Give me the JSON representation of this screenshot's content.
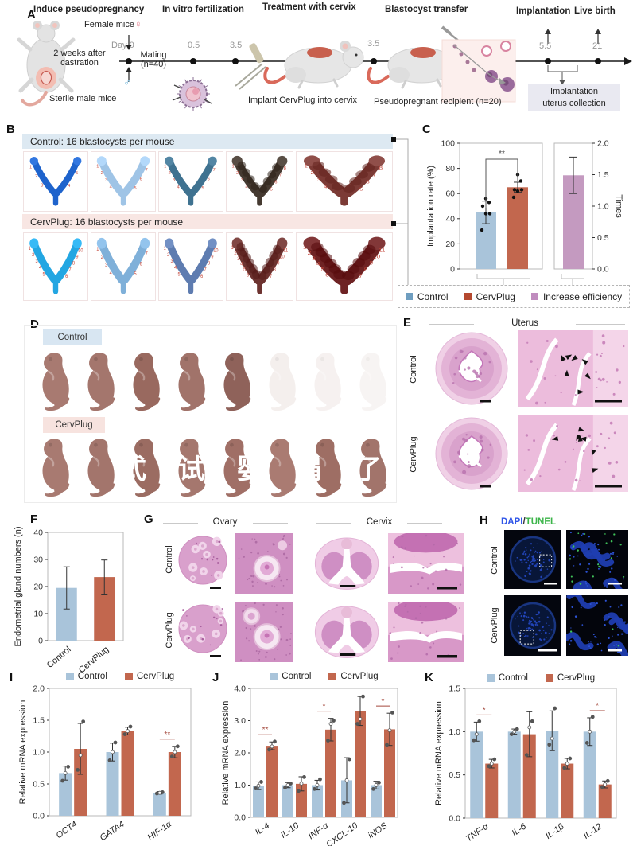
{
  "panels": {
    "a": "A",
    "b": "B",
    "c": "C",
    "d": "D",
    "e": "E",
    "f": "F",
    "g": "G",
    "h": "H",
    "i": "I",
    "j": "J",
    "k": "K"
  },
  "panelA": {
    "steps": [
      "Induce pseudopregnancy",
      "In vitro fertilization",
      "Treatment with cervix",
      "Blastocyst transfer",
      "Implantation",
      "Live birth"
    ],
    "female_mice": "Female mice",
    "female_symbol": "♀",
    "male_symbol": "♂",
    "day0": "Day 0",
    "mating": "Mating",
    "mating_n": "(n=40)",
    "castration_1": "2 weeks after",
    "castration_2": "castration",
    "sterile": "Sterile male mice",
    "t05": "0.5",
    "t35a": "3.5",
    "t35b": "3.5",
    "t55": "5.5",
    "t21": "21",
    "implant_note": "Implant CervPlug into cervix",
    "recipient_note": "Pseudopregnant recipient (n=20)",
    "collection_1": "Implantation",
    "collection_2": "uterus collection"
  },
  "panelB": {
    "control_header": "Control: 16 blastocysts per mouse",
    "cervplug_header": "CervPlug: 16 blastocysts per mouse",
    "control_tiles": [
      {
        "color": "#1e63cc",
        "count": 5,
        "bumpy": false,
        "strokeW": 10
      },
      {
        "color": "#9fc4e6",
        "count": 7,
        "bumpy": false,
        "strokeW": 12
      },
      {
        "color": "#3f7290",
        "count": 7,
        "bumpy": false,
        "strokeW": 11
      },
      {
        "color": "#453a31",
        "count": 8,
        "bumpy": true,
        "strokeW": 13
      },
      {
        "color": "#7c3b36",
        "count": 8,
        "bumpy": true,
        "strokeW": 14
      }
    ],
    "cervplug_tiles": [
      {
        "color": "#23a6e2",
        "count": 10,
        "bumpy": false,
        "strokeW": 11
      },
      {
        "color": "#7fb0d9",
        "count": 7,
        "bumpy": false,
        "strokeW": 12
      },
      {
        "color": "#5e7cb0",
        "count": 10,
        "bumpy": false,
        "strokeW": 11
      },
      {
        "color": "#6d3330",
        "count": 11,
        "bumpy": true,
        "strokeW": 13
      },
      {
        "color": "#6e2324",
        "count": 11,
        "bumpy": true,
        "strokeW": 15
      }
    ]
  },
  "panelD": {
    "control": "Control",
    "cervplug": "CervPlug",
    "control_pups": [
      {
        "color": "#a87a71",
        "opacity": 1
      },
      {
        "color": "#a4766d",
        "opacity": 1
      },
      {
        "color": "#99695f",
        "opacity": 1
      },
      {
        "color": "#a1736a",
        "opacity": 1
      },
      {
        "color": "#8f625a",
        "opacity": 1
      },
      {
        "color": "#e8dcd8",
        "opacity": 0.45
      },
      {
        "color": "#e8dcd8",
        "opacity": 0.38
      },
      {
        "color": "#e8dcd8",
        "opacity": 0.3
      }
    ],
    "cervplug_pups": [
      {
        "color": "#a87a71",
        "opacity": 1
      },
      {
        "color": "#a3756c",
        "opacity": 1
      },
      {
        "color": "#9b6c62",
        "opacity": 1
      },
      {
        "color": "#a5776e",
        "opacity": 1
      },
      {
        "color": "#a06f66",
        "opacity": 1
      },
      {
        "color": "#aa7b72",
        "opacity": 1
      },
      {
        "color": "#9e6e64",
        "opacity": 1
      },
      {
        "color": "#a2746b",
        "opacity": 1
      }
    ],
    "watermark": "式试婴肩了"
  },
  "panelE": {
    "title": "Uterus",
    "row1": "Control",
    "row2": "CervPlug"
  },
  "panelG": {
    "title1": "Ovary",
    "title2": "Cervix",
    "row1": "Control",
    "row2": "CervPlug"
  },
  "panelH": {
    "title_dapi": "DAPI",
    "title_slash": "/",
    "title_tunel": "TUNEL",
    "row1": "Control",
    "row2": "CervPlug",
    "colors": {
      "dapi": "#2f55e8",
      "tunel": "#3cb54a"
    }
  },
  "colors": {
    "bar_blue": "#a9c4da",
    "bar_red": "#c2674e",
    "bar_pink": "#c49ac0",
    "legend_blue": "#6f9ec0",
    "legend_red": "#b5492f",
    "legend_pink": "#c08cbe",
    "header_blue": "#dde9f2",
    "header_pink": "#f8e6e3",
    "sig_red": "#a4493d"
  },
  "chart_data": [
    {
      "id": "implantation",
      "type": "bar-dual-axis",
      "left": {
        "ylabel": "Implantation rate (%)",
        "ylim": [
          0,
          100
        ],
        "yticks": [
          0,
          20,
          40,
          60,
          80,
          100
        ],
        "bars": [
          {
            "name": "Control",
            "value": 45,
            "err": 9,
            "color": "#a9c4da",
            "points": [
              31,
              44,
              44,
              50,
              53,
              56
            ]
          },
          {
            "name": "CervPlug",
            "value": 65,
            "err": 4,
            "color": "#c2674e",
            "points": [
              57,
              62,
              63,
              63,
              70,
              75
            ]
          }
        ],
        "significance": {
          "label": "**"
        }
      },
      "right": {
        "ylabel": "Times",
        "ylim": [
          0,
          2
        ],
        "yticks": [
          "0.0",
          "0.5",
          "1.0",
          "1.5",
          "2.0"
        ],
        "bars": [
          {
            "name": "Increase efficiency",
            "value": 1.49,
            "err": 0.29,
            "color": "#c49ac0"
          }
        ]
      },
      "legend": [
        {
          "label": "Control",
          "color": "#6f9ec0"
        },
        {
          "label": "CervPlug",
          "color": "#b5492f"
        },
        {
          "label": "Increase efficiency",
          "color": "#c08cbe"
        }
      ]
    },
    {
      "id": "endometrial",
      "type": "bar",
      "ylabel": "Endometrial gland numbers (n)",
      "ylim": [
        0,
        40
      ],
      "yticks": [
        0,
        10,
        20,
        30,
        40
      ],
      "categories": [
        "Control",
        "CervPlug"
      ],
      "values": [
        19.5,
        23.5
      ],
      "errors": [
        7.8,
        6.3
      ],
      "colors": [
        "#a9c4da",
        "#c2674e"
      ]
    },
    {
      "id": "mrna_embryo",
      "type": "grouped-bar",
      "ylabel": "Relative mRNA expression",
      "ylim": [
        0,
        2
      ],
      "yticks": [
        "0.0",
        "0.5",
        "1.0",
        "1.5",
        "2.0"
      ],
      "categories": [
        "OCT4",
        "GATA4",
        "HIF-1α"
      ],
      "series": [
        {
          "name": "Control",
          "color": "#a9c4da",
          "values": [
            0.67,
            1.0,
            0.36
          ],
          "errors": [
            0.11,
            0.14,
            0.02
          ],
          "points": [
            [
              0.55,
              0.67,
              0.77
            ],
            [
              0.87,
              1.0,
              1.15
            ],
            [
              0.35,
              0.36,
              0.37
            ]
          ]
        },
        {
          "name": "CervPlug",
          "color": "#c2674e",
          "values": [
            1.05,
            1.33,
            1.0
          ],
          "errors": [
            0.4,
            0.06,
            0.09
          ],
          "points": [
            [
              0.72,
              0.95,
              1.48
            ],
            [
              1.28,
              1.33,
              1.4
            ],
            [
              0.93,
              1.0,
              1.09
            ]
          ]
        }
      ],
      "significance": [
        {
          "cat": 2,
          "label": "**"
        }
      ]
    },
    {
      "id": "mrna_immune1",
      "type": "grouped-bar",
      "ylabel": "Relative mRNA expression",
      "ylim": [
        0,
        4
      ],
      "yticks": [
        "0.0",
        "1.0",
        "2.0",
        "3.0",
        "4.0"
      ],
      "categories": [
        "IL-4",
        "IL-10",
        "INF-α",
        "CXCL-10",
        "iNOS"
      ],
      "series": [
        {
          "name": "Control",
          "color": "#a9c4da",
          "values": [
            0.98,
            1.0,
            1.0,
            1.15,
            1.0
          ],
          "errors": [
            0.12,
            0.08,
            0.15,
            0.7,
            0.12
          ],
          "points": [
            [
              0.9,
              0.98,
              1.1
            ],
            [
              0.92,
              1.0,
              1.05
            ],
            [
              0.88,
              1.0,
              1.18
            ],
            [
              0.45,
              1.15,
              1.8
            ],
            [
              0.88,
              1.0,
              1.08
            ]
          ]
        },
        {
          "name": "CervPlug",
          "color": "#c2674e",
          "values": [
            2.22,
            1.04,
            2.72,
            3.3,
            2.73
          ],
          "errors": [
            0.12,
            0.22,
            0.35,
            0.45,
            0.5
          ],
          "points": [
            [
              2.1,
              2.2,
              2.35
            ],
            [
              0.82,
              1.05,
              1.25
            ],
            [
              2.38,
              2.9,
              3.0
            ],
            [
              2.9,
              3.05,
              3.75
            ],
            [
              2.25,
              2.7,
              3.25
            ]
          ]
        }
      ],
      "significance": [
        {
          "cat": 0,
          "label": "**"
        },
        {
          "cat": 2,
          "label": "*"
        },
        {
          "cat": 4,
          "label": "*"
        }
      ]
    },
    {
      "id": "mrna_immune2",
      "type": "grouped-bar",
      "ylabel": "Relative mRNA expression",
      "ylim": [
        0,
        1.5
      ],
      "yticks": [
        "0.0",
        "0.5",
        "1.0",
        "1.5"
      ],
      "categories": [
        "TNF-α",
        "IL-6",
        "IL-1β",
        "IL-12"
      ],
      "series": [
        {
          "name": "Control",
          "color": "#a9c4da",
          "values": [
            1.0,
            1.0,
            1.01,
            1.0
          ],
          "errors": [
            0.11,
            0.03,
            0.23,
            0.16
          ],
          "points": [
            [
              0.9,
              0.97,
              1.12
            ],
            [
              0.97,
              1.0,
              1.03
            ],
            [
              0.85,
              0.92,
              1.27
            ],
            [
              0.87,
              1.0,
              1.17
            ]
          ]
        },
        {
          "name": "CervPlug",
          "color": "#c2674e",
          "values": [
            0.63,
            0.97,
            0.63,
            0.39
          ],
          "errors": [
            0.05,
            0.26,
            0.06,
            0.04
          ],
          "points": [
            [
              0.6,
              0.63,
              0.68
            ],
            [
              0.73,
              1.05,
              1.12
            ],
            [
              0.58,
              0.63,
              0.69
            ],
            [
              0.36,
              0.39,
              0.43
            ]
          ]
        }
      ],
      "significance": [
        {
          "cat": 0,
          "label": "*"
        },
        {
          "cat": 3,
          "label": "*"
        }
      ]
    }
  ]
}
